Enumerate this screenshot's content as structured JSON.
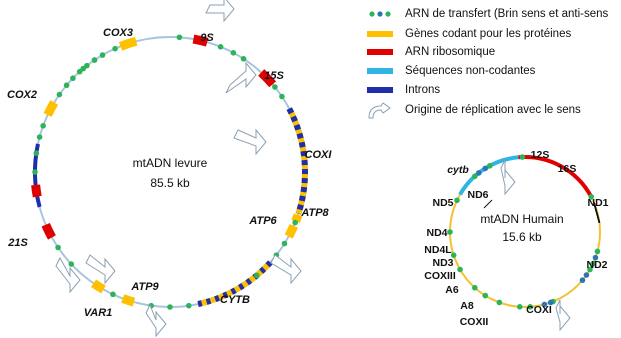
{
  "legend": [
    "ARN de transfert (Brin sens et anti-sens",
    "Gènes codant pour les protéines",
    "ARN ribosomique",
    "Séquences non-codantes",
    "Introns",
    "Origine de réplication avec le sens"
  ],
  "yeast": {
    "title": "mtADN levure",
    "size": "85.5 kb",
    "genes": [
      "COX3",
      "9S",
      "15S",
      "COXI",
      "ATP8",
      "ATP6",
      "CYTB",
      "ATP9",
      "VAR1",
      "21S",
      "COX2"
    ]
  },
  "human": {
    "title": "mtADN Humain",
    "size": "15.6 kb",
    "genes": [
      "cytb",
      "12S",
      "16S",
      "ND1",
      "ND2",
      "COXI",
      "COXII",
      "A8",
      "A6",
      "COXIII",
      "ND3",
      "ND4L",
      "ND4",
      "ND5",
      "ND6"
    ]
  }
}
